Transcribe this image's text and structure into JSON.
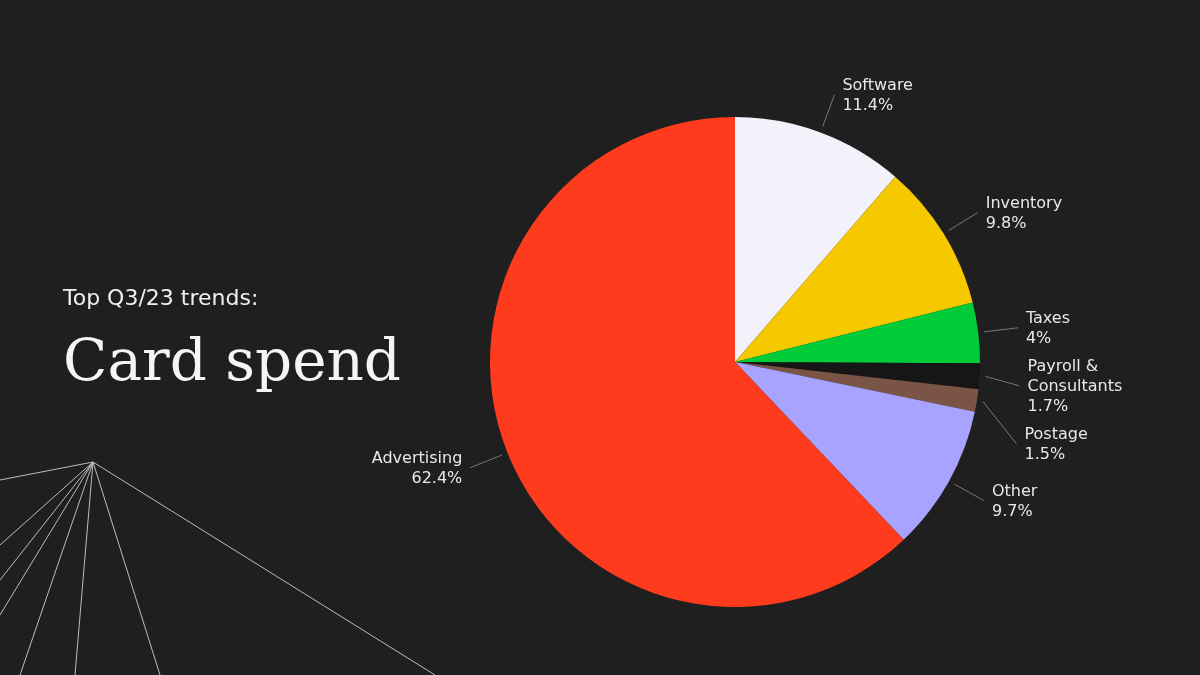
{
  "chart_data": {
    "type": "pie",
    "subtitle": "Top Q3/23 trends:",
    "title": "Card spend",
    "categories": [
      "Software",
      "Inventory",
      "Taxes",
      "Payroll & Consultants",
      "Postage",
      "Other",
      "Advertising"
    ],
    "values": [
      11.4,
      9.8,
      4,
      1.7,
      1.5,
      9.7,
      62.4
    ],
    "colors": [
      "#f3f2fb",
      "#f5c800",
      "#00cc3a",
      "#161616",
      "#7a5445",
      "#a8a3ff",
      "#ff3b1d"
    ],
    "value_labels": [
      "11.4%",
      "9.8%",
      "4%",
      "1.7%",
      "1.5%",
      "9.7%",
      "62.4%"
    ]
  }
}
